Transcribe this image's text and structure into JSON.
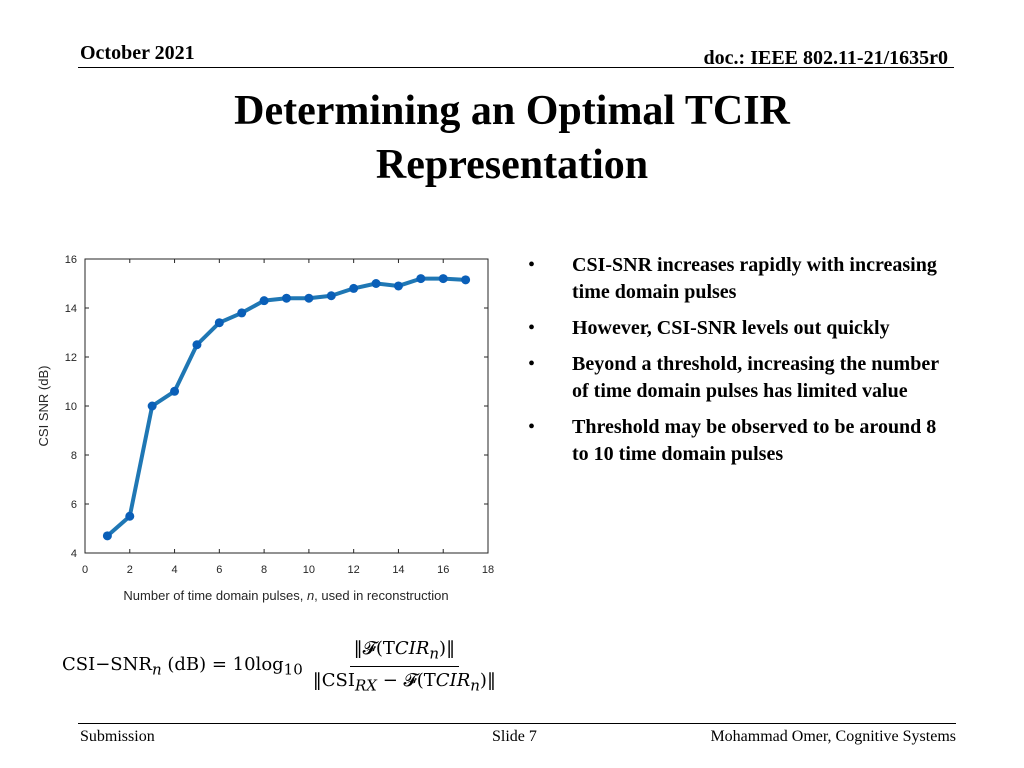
{
  "header": {
    "date": "October 2021",
    "doc": "doc.: IEEE 802.11-21/1635r0"
  },
  "title": {
    "line1": "Determining an Optimal TCIR",
    "line2": "Representation"
  },
  "chart_data": {
    "type": "line",
    "x": [
      1,
      2,
      3,
      4,
      5,
      6,
      7,
      8,
      9,
      10,
      11,
      12,
      13,
      14,
      15,
      16,
      17
    ],
    "series": [
      {
        "values": [
          4.7,
          5.5,
          10.0,
          10.6,
          12.5,
          13.4,
          13.8,
          14.3,
          14.4,
          14.4,
          14.5,
          14.8,
          15.0,
          14.9,
          15.2,
          15.2,
          15.15
        ]
      }
    ],
    "xlabel_prefix": "Number of time domain pulses, ",
    "xlabel_var": "n",
    "xlabel_suffix": ", used in reconstruction",
    "ylabel": "CSI SNR (dB)",
    "xlim": [
      0,
      18
    ],
    "ylim": [
      4,
      16
    ],
    "xticks": [
      0,
      2,
      4,
      6,
      8,
      10,
      12,
      14,
      16,
      18
    ],
    "yticks": [
      4,
      6,
      8,
      10,
      12,
      14,
      16
    ],
    "grid": false,
    "line_color": "#1f77b4",
    "marker_color": "#0a5fb8"
  },
  "bullets": [
    "CSI-SNR increases rapidly with increasing time domain pulses",
    "However, CSI-SNR levels out quickly",
    "Beyond a threshold, increasing the number of time domain pulses has limited value",
    "Threshold may be observed to be around 8 to 10 time domain pulses"
  ],
  "bullet_symbol": "•",
  "formula": {
    "lhs": "CSI−SNR",
    "lhs_sub": "n",
    "lhs_unit": " (dB) = 10log",
    "log_base": "10",
    "numerator": "‖𝓕(T𝐶𝐼𝑅",
    "numerator_sub": "n",
    "numerator_end": ")‖",
    "denominator_a": "‖CSI",
    "denominator_sub": "RX",
    "denominator_b": " − 𝓕(T𝐶𝐼𝑅",
    "denominator_sub2": "n",
    "denominator_end": ")‖"
  },
  "footer": {
    "left": "Submission",
    "center": "Slide 7",
    "right": "Mohammad Omer, Cognitive Systems"
  }
}
